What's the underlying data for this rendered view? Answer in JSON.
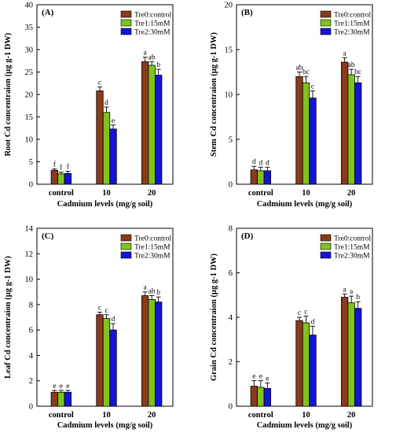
{
  "colors": {
    "Tre0:control": "#8b3a1a",
    "Tre1:15mM": "#7ec41e",
    "Tre2:30mM": "#1414d8",
    "background": "#ffffff"
  },
  "chart_data": [
    {
      "type": "bar",
      "panel_label": "(A)",
      "ylabel": "Root Cd concentraion (µg g-1 DW)",
      "xlabel": "Cadmium levels (mg/g soil)",
      "categories": [
        "control",
        "10",
        "20"
      ],
      "ylim": [
        0,
        40
      ],
      "yticks": [
        0,
        5,
        10,
        15,
        20,
        25,
        30,
        35,
        40
      ],
      "legend": "top-right",
      "series": [
        {
          "name": "Tre0:control",
          "values": [
            3.1,
            20.8,
            27.3
          ],
          "errors": [
            0.3,
            0.9,
            1.0
          ],
          "letters": [
            "f",
            "c",
            "a"
          ]
        },
        {
          "name": "Tre1:15mM",
          "values": [
            2.3,
            16.0,
            26.5
          ],
          "errors": [
            0.4,
            1.2,
            0.8
          ],
          "letters": [
            "f",
            "d",
            "ab"
          ]
        },
        {
          "name": "Tre2:30mM",
          "values": [
            2.4,
            12.3,
            24.3
          ],
          "errors": [
            0.5,
            0.9,
            1.3
          ],
          "letters": [
            "f",
            "e",
            "b"
          ]
        }
      ]
    },
    {
      "type": "bar",
      "panel_label": "(B)",
      "ylabel": "Stem Cd concentraion (µg g-1 DW)",
      "xlabel": "Cadmium levels (mg/g soil)",
      "categories": [
        "control",
        "10",
        "20"
      ],
      "ylim": [
        0,
        20
      ],
      "yticks": [
        0,
        5,
        10,
        15,
        20
      ],
      "legend": "top-right",
      "series": [
        {
          "name": "Tre0:control",
          "values": [
            1.6,
            12.0,
            13.6
          ],
          "errors": [
            0.4,
            0.5,
            0.5
          ],
          "letters": [
            "d",
            "ab",
            "a"
          ]
        },
        {
          "name": "Tre1:15mM",
          "values": [
            1.5,
            11.3,
            12.2
          ],
          "errors": [
            0.4,
            0.7,
            0.6
          ],
          "letters": [
            "d",
            "bc",
            "ab"
          ]
        },
        {
          "name": "Tre2:30mM",
          "values": [
            1.5,
            9.6,
            11.3
          ],
          "errors": [
            0.4,
            0.8,
            0.7
          ],
          "letters": [
            "d",
            "c",
            "bc"
          ]
        }
      ]
    },
    {
      "type": "bar",
      "panel_label": "(C)",
      "ylabel": "Leaf Cd concentraion (µg g-1 DW)",
      "xlabel": "Cadmium levels (mg/g soil)",
      "categories": [
        "control",
        "10",
        "20"
      ],
      "ylim": [
        0,
        14
      ],
      "yticks": [
        0,
        2,
        4,
        6,
        8,
        10,
        12,
        14
      ],
      "legend": "top-right",
      "series": [
        {
          "name": "Tre0:control",
          "values": [
            1.1,
            7.2,
            8.7
          ],
          "errors": [
            0.15,
            0.2,
            0.3
          ],
          "letters": [
            "e",
            "c",
            "a"
          ]
        },
        {
          "name": "Tre1:15mM",
          "values": [
            1.1,
            6.9,
            8.4
          ],
          "errors": [
            0.15,
            0.3,
            0.3
          ],
          "letters": [
            "e",
            "c",
            "ab"
          ]
        },
        {
          "name": "Tre2:30mM",
          "values": [
            1.1,
            6.0,
            8.2
          ],
          "errors": [
            0.15,
            0.5,
            0.4
          ],
          "letters": [
            "e",
            "d",
            "b"
          ]
        }
      ]
    },
    {
      "type": "bar",
      "panel_label": "(D)",
      "ylabel": "Grain Cd concentraion (µg g-1 DW)",
      "xlabel": "Cadmium levels (mg/g soil)",
      "categories": [
        "control",
        "10",
        "20"
      ],
      "ylim": [
        0,
        8
      ],
      "yticks": [
        0,
        2,
        4,
        6,
        8
      ],
      "legend": "top-right",
      "series": [
        {
          "name": "Tre0:control",
          "values": [
            0.9,
            3.85,
            4.9
          ],
          "errors": [
            0.25,
            0.15,
            0.15
          ],
          "letters": [
            "e",
            "c",
            "a"
          ]
        },
        {
          "name": "Tre1:15mM",
          "values": [
            0.85,
            3.75,
            4.65
          ],
          "errors": [
            0.3,
            0.3,
            0.3
          ],
          "letters": [
            "e",
            "c",
            "a"
          ]
        },
        {
          "name": "Tre2:30mM",
          "values": [
            0.8,
            3.2,
            4.4
          ],
          "errors": [
            0.25,
            0.4,
            0.3
          ],
          "letters": [
            "e",
            "d",
            "b"
          ]
        }
      ]
    }
  ]
}
